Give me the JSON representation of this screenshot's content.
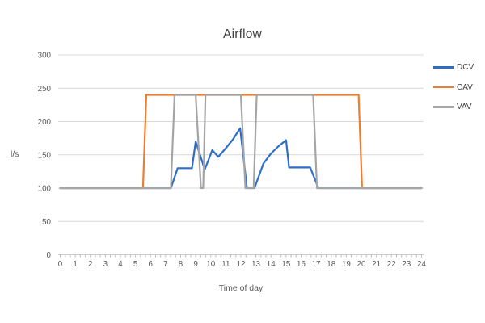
{
  "chart_data": {
    "type": "line",
    "title": "Airflow",
    "xlabel": "Time of day",
    "ylabel": "l/s",
    "xlim": [
      0,
      24
    ],
    "ylim": [
      0,
      300
    ],
    "x_ticks": [
      0,
      1,
      2,
      3,
      4,
      5,
      6,
      7,
      8,
      9,
      10,
      11,
      12,
      13,
      14,
      15,
      16,
      17,
      18,
      19,
      20,
      21,
      22,
      23,
      24
    ],
    "y_ticks": [
      0,
      50,
      100,
      150,
      200,
      250,
      300
    ],
    "grid": "horizontal-only",
    "legend_position": "right",
    "colors": {
      "background": "#FFFFFF",
      "grid": "#D9D9D9",
      "axis": "#C9C9C9",
      "tick": "#BFBFBF",
      "tick_label": "#595959",
      "title": "#404040",
      "legend_label": "#404040"
    },
    "series": [
      {
        "name": "DCV",
        "color": "#2E6EC6",
        "points": [
          [
            0,
            100
          ],
          [
            7.35,
            100
          ],
          [
            7.8,
            130
          ],
          [
            8.75,
            130
          ],
          [
            9.0,
            170
          ],
          [
            9.6,
            128
          ],
          [
            10.1,
            157
          ],
          [
            10.5,
            147
          ],
          [
            11.0,
            160
          ],
          [
            11.5,
            174
          ],
          [
            11.95,
            190
          ],
          [
            12.4,
            100
          ],
          [
            12.9,
            100
          ],
          [
            13.5,
            137
          ],
          [
            14.0,
            152
          ],
          [
            14.5,
            163
          ],
          [
            15.0,
            172
          ],
          [
            15.2,
            131
          ],
          [
            16.6,
            131
          ],
          [
            17.15,
            100
          ],
          [
            24,
            100
          ]
        ]
      },
      {
        "name": "CAV",
        "color": "#ED7D31",
        "points": [
          [
            0,
            100
          ],
          [
            5.5,
            100
          ],
          [
            5.72,
            240
          ],
          [
            19.82,
            240
          ],
          [
            20.05,
            100
          ],
          [
            24,
            100
          ]
        ]
      },
      {
        "name": "VAV",
        "color": "#A5A5A5",
        "points": [
          [
            0,
            100
          ],
          [
            7.35,
            100
          ],
          [
            7.6,
            240
          ],
          [
            9.0,
            240
          ],
          [
            9.35,
            100
          ],
          [
            9.5,
            100
          ],
          [
            9.65,
            240
          ],
          [
            12.0,
            240
          ],
          [
            12.3,
            100
          ],
          [
            12.85,
            100
          ],
          [
            13.05,
            240
          ],
          [
            16.8,
            240
          ],
          [
            17.05,
            100
          ],
          [
            24,
            100
          ]
        ]
      }
    ]
  }
}
